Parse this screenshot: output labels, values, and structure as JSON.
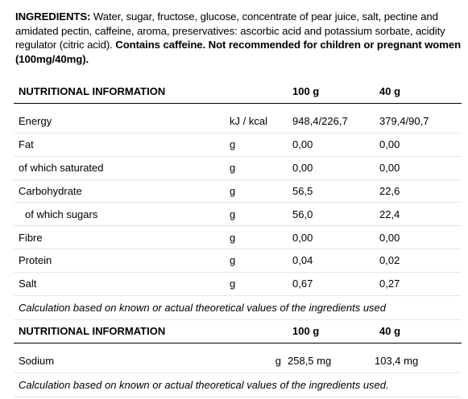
{
  "ingredients": {
    "label": "INGREDIENTS:",
    "text": " Water, sugar, fructose, glucose, concentrate of pear juice, salt, pectine and amidated pectin, caffeine, aroma, preservatives: ascorbic acid and potassium sorbate, acidity regulator (citric acid). ",
    "warning": "Contains caffeine. Not recommended for children or pregnant women (100mg/40mg)."
  },
  "table1": {
    "headers": [
      "NUTRITIONAL INFORMATION",
      "",
      "100 g",
      "40 g"
    ],
    "rows": [
      {
        "name": "Energy",
        "unit": "kJ / kcal",
        "per100": "948,4/226,7",
        "per40": "379,4/90,7"
      },
      {
        "name": "Fat",
        "unit": "g",
        "per100": "0,00",
        "per40": "0,00"
      },
      {
        "name": "of which saturated",
        "unit": "g",
        "per100": "0,00",
        "per40": "0,00"
      },
      {
        "name": "Carbohydrate",
        "unit": "g",
        "per100": "56,5",
        "per40": "22,6"
      },
      {
        "name": "of which sugars",
        "unit": "g",
        "per100": "56,0",
        "per40": "22,4"
      },
      {
        "name": "Fibre",
        "unit": "g",
        "per100": "0,00",
        "per40": "0,00"
      },
      {
        "name": "Protein",
        "unit": "g",
        "per100": "0,04",
        "per40": "0,02"
      },
      {
        "name": "Salt",
        "unit": "g",
        "per100": "0,67",
        "per40": "0,27"
      }
    ],
    "note": "Calculation based on known or actual theoretical values of the ingredients used"
  },
  "table2": {
    "headers": [
      "NUTRITIONAL INFORMATION",
      "100 g",
      "40 g"
    ],
    "rows": [
      {
        "name": "Sodium",
        "unit": "g",
        "per100": "258,5 mg",
        "per40": "103,4 mg"
      }
    ],
    "note": "Calculation based on known or actual theoretical values of the ingredients used."
  }
}
